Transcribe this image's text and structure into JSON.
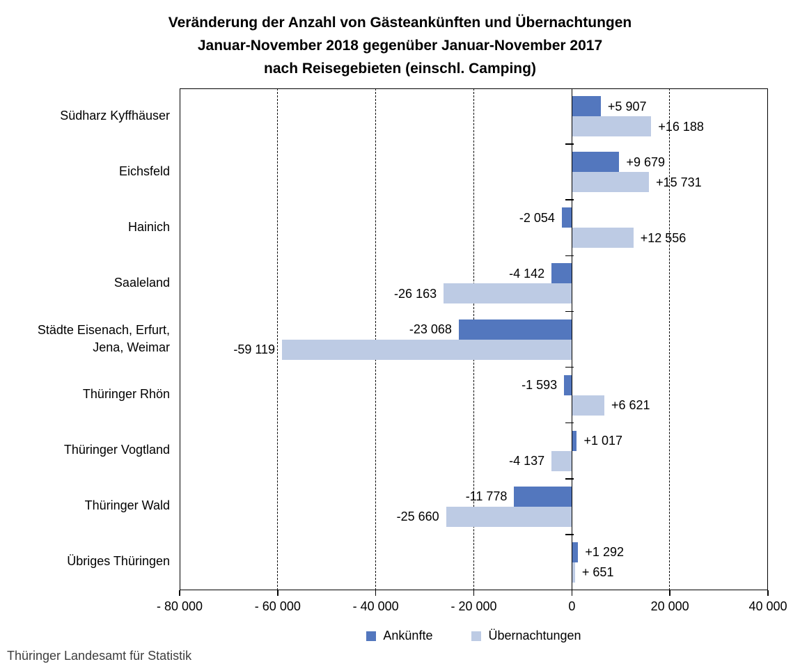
{
  "title": {
    "line1": "Veränderung der Anzahl von Gästeankünften und Übernachtungen",
    "line2": "Januar-November 2018 gegenüber Januar-November 2017",
    "line3": "nach Reisegebieten (einschl. Camping)"
  },
  "footer": "Thüringer Landesamt für Statistik",
  "colors": {
    "ankuenfte": "#5377BE",
    "uebernachtungen": "#BDCBE4",
    "axis": "#000000",
    "background": "#FFFFFF"
  },
  "legend": [
    {
      "name": "Ankünfte",
      "color_key": "ankuenfte"
    },
    {
      "name": "Übernachtungen",
      "color_key": "uebernachtungen"
    }
  ],
  "chart_data": {
    "type": "bar",
    "orientation": "horizontal",
    "grid": "dashed-vertical",
    "legend_position": "bottom",
    "categories": [
      "Südharz Kyffhäuser",
      "Eichsfeld",
      "Hainich",
      "Saaleland",
      "Städte Eisenach, Erfurt,\nJena, Weimar",
      "Thüringer Rhön",
      "Thüringer Vogtland",
      "Thüringer Wald",
      "Übriges Thüringen"
    ],
    "series": [
      {
        "name": "Ankünfte",
        "color_key": "ankuenfte",
        "values": [
          5907,
          9679,
          -2054,
          -4142,
          -23068,
          -1593,
          1017,
          -11778,
          1292
        ],
        "labels": [
          "+5 907",
          "+9 679",
          "-2 054",
          "-4 142",
          "-23 068",
          "-1 593",
          "+1 017",
          "-11 778",
          "+1 292"
        ]
      },
      {
        "name": "Übernachtungen",
        "color_key": "uebernachtungen",
        "values": [
          16188,
          15731,
          12556,
          -26163,
          -59119,
          6621,
          -4137,
          -25660,
          651
        ],
        "labels": [
          "+16 188",
          "+15 731",
          "+12 556",
          "-26 163",
          "-59 119",
          "+6 621",
          "-4 137",
          "-25 660",
          "+ 651"
        ]
      }
    ],
    "x_axis": {
      "min": -80000,
      "max": 40000,
      "tick_values": [
        -80000,
        -60000,
        -40000,
        -20000,
        0,
        20000,
        40000
      ],
      "tick_labels": [
        "- 80 000",
        "- 60 000",
        "- 40 000",
        "- 20 000",
        "0",
        "20 000",
        "40 000"
      ]
    }
  }
}
